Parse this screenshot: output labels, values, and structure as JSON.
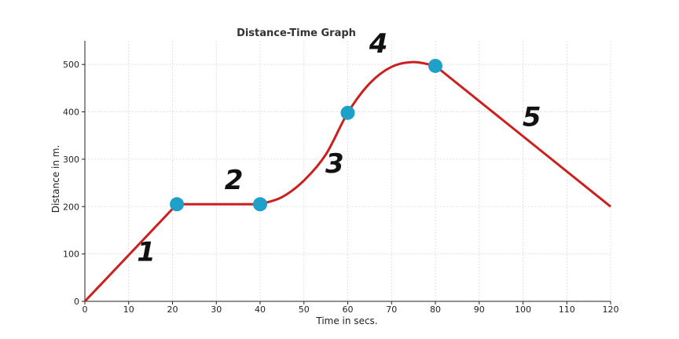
{
  "chart_data": {
    "type": "line",
    "title": "Distance-Time Graph",
    "xlabel": "Time in secs.",
    "ylabel": "Distance in m.",
    "xlim": [
      0,
      120
    ],
    "ylim": [
      0,
      550
    ],
    "xticks": [
      0,
      10,
      20,
      30,
      40,
      50,
      60,
      70,
      80,
      90,
      100,
      110,
      120
    ],
    "yticks": [
      0,
      100,
      200,
      300,
      400,
      500
    ],
    "grid": true,
    "line_color": "#cc1f1f",
    "marker_color": "#1ea1c9",
    "series": [
      {
        "x": [
          0,
          21,
          40,
          45,
          50,
          55,
          60,
          65,
          70,
          75,
          80,
          120
        ],
        "y": [
          0,
          205,
          205,
          220,
          255,
          310,
          398,
          460,
          495,
          505,
          497,
          200
        ]
      }
    ],
    "markers": [
      {
        "x": 21,
        "y": 205
      },
      {
        "x": 40,
        "y": 205
      },
      {
        "x": 60,
        "y": 398
      },
      {
        "x": 80,
        "y": 497
      }
    ],
    "annotations": [
      {
        "text": "1",
        "x": 14,
        "y": 85
      },
      {
        "text": "2",
        "x": 34,
        "y": 237
      },
      {
        "text": "3",
        "x": 57,
        "y": 272
      },
      {
        "text": "4",
        "x": 67,
        "y": 525
      },
      {
        "text": "5",
        "x": 102,
        "y": 370
      }
    ]
  }
}
